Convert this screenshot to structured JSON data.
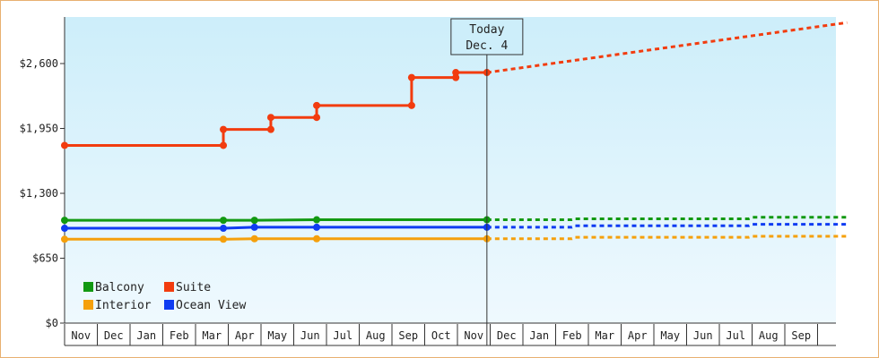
{
  "chart_data": {
    "type": "line",
    "title": "",
    "xlabel": "",
    "ylabel": "",
    "ylim": [
      0,
      2600
    ],
    "y_ticks": [
      {
        "value": 0,
        "label": "$0"
      },
      {
        "value": 650,
        "label": "$650"
      },
      {
        "value": 1300,
        "label": "$1,300"
      },
      {
        "value": 1950,
        "label": "$1,950"
      },
      {
        "value": 2600,
        "label": "$2,600"
      }
    ],
    "x_month_labels": [
      "Nov",
      "Dec",
      "Jan",
      "Feb",
      "Mar",
      "Apr",
      "May",
      "Jun",
      "Jul",
      "Aug",
      "Sep",
      "Oct",
      "Nov",
      "Dec",
      "Jan",
      "Feb",
      "Mar",
      "Apr",
      "May",
      "Jun",
      "Jul",
      "Aug",
      "Sep"
    ],
    "today": {
      "month_index": 12.9,
      "line1": "Today",
      "line2": "Dec. 4"
    },
    "grid": false,
    "legend_position": "bottom-left",
    "series": [
      {
        "name": "Balcony",
        "color": "#129912",
        "points": [
          [
            0,
            1030
          ],
          [
            4.85,
            1030
          ],
          [
            5.8,
            1030
          ],
          [
            7.7,
            1035
          ],
          [
            12.9,
            1035
          ]
        ],
        "markers": [
          [
            0,
            1030
          ],
          [
            4.85,
            1030
          ],
          [
            5.8,
            1030
          ],
          [
            7.7,
            1035
          ],
          [
            12.9,
            1035
          ]
        ],
        "forecast": [
          [
            12.9,
            1035
          ],
          [
            15.5,
            1035
          ],
          [
            15.6,
            1045
          ],
          [
            20.9,
            1045
          ],
          [
            21.0,
            1060
          ],
          [
            23.9,
            1060
          ]
        ]
      },
      {
        "name": "Suite",
        "color": "#f23c0f",
        "points": [
          [
            0,
            1780
          ],
          [
            4.85,
            1780
          ],
          [
            4.85,
            1940
          ],
          [
            6.3,
            1940
          ],
          [
            6.3,
            2060
          ],
          [
            7.7,
            2060
          ],
          [
            7.7,
            2180
          ],
          [
            10.6,
            2180
          ],
          [
            10.6,
            2460
          ],
          [
            11.95,
            2460
          ],
          [
            11.95,
            2510
          ],
          [
            12.9,
            2510
          ]
        ],
        "markers": [
          [
            0,
            1780
          ],
          [
            4.85,
            1780
          ],
          [
            4.85,
            1940
          ],
          [
            6.3,
            1940
          ],
          [
            6.3,
            2060
          ],
          [
            7.7,
            2060
          ],
          [
            7.7,
            2180
          ],
          [
            10.6,
            2180
          ],
          [
            10.6,
            2460
          ],
          [
            11.95,
            2460
          ],
          [
            11.95,
            2510
          ],
          [
            12.9,
            2510
          ]
        ],
        "forecast": [
          [
            12.9,
            2510
          ],
          [
            23.9,
            3010
          ]
        ]
      },
      {
        "name": "Interior",
        "color": "#f5a00c",
        "points": [
          [
            0,
            840
          ],
          [
            4.85,
            840
          ],
          [
            5.8,
            845
          ],
          [
            7.7,
            845
          ],
          [
            12.9,
            845
          ]
        ],
        "markers": [
          [
            0,
            840
          ],
          [
            4.85,
            840
          ],
          [
            5.8,
            845
          ],
          [
            7.7,
            845
          ],
          [
            12.9,
            845
          ]
        ],
        "forecast": [
          [
            12.9,
            845
          ],
          [
            15.5,
            845
          ],
          [
            15.6,
            860
          ],
          [
            20.9,
            860
          ],
          [
            21.0,
            870
          ],
          [
            23.9,
            870
          ]
        ]
      },
      {
        "name": "Ocean View",
        "color": "#0f3cf2",
        "points": [
          [
            0,
            950
          ],
          [
            4.85,
            950
          ],
          [
            5.8,
            960
          ],
          [
            7.7,
            960
          ],
          [
            12.9,
            960
          ]
        ],
        "markers": [
          [
            0,
            950
          ],
          [
            4.85,
            950
          ],
          [
            5.8,
            960
          ],
          [
            7.7,
            960
          ],
          [
            12.9,
            960
          ]
        ],
        "forecast": [
          [
            12.9,
            960
          ],
          [
            15.5,
            960
          ],
          [
            15.6,
            975
          ],
          [
            20.9,
            975
          ],
          [
            21.0,
            990
          ],
          [
            23.9,
            990
          ]
        ]
      }
    ],
    "legend_order": [
      "Balcony",
      "Suite",
      "Interior",
      "Ocean View"
    ]
  }
}
